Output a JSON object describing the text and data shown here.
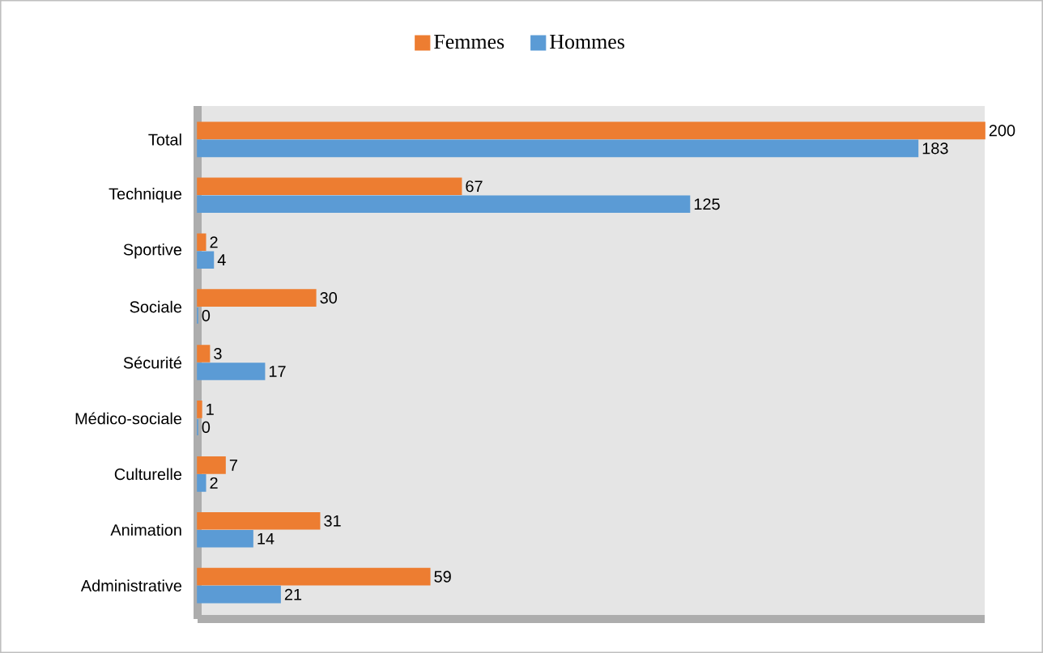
{
  "chart_data": {
    "type": "bar",
    "orientation": "horizontal",
    "categories": [
      "Total",
      "Technique",
      "Sportive",
      "Sociale",
      "Sécurité",
      "Médico-sociale",
      "Culturelle",
      "Animation",
      "Administrative"
    ],
    "series": [
      {
        "name": "Femmes",
        "color": "#ed7d31",
        "values": [
          200,
          67,
          2,
          30,
          3,
          1,
          7,
          31,
          59
        ]
      },
      {
        "name": "Hommes",
        "color": "#5b9bd5",
        "values": [
          183,
          125,
          4,
          0,
          17,
          0,
          2,
          14,
          21
        ]
      }
    ],
    "xlim": [
      0,
      200
    ],
    "data_labels": true,
    "legend": "top",
    "tick_labels": "y"
  }
}
